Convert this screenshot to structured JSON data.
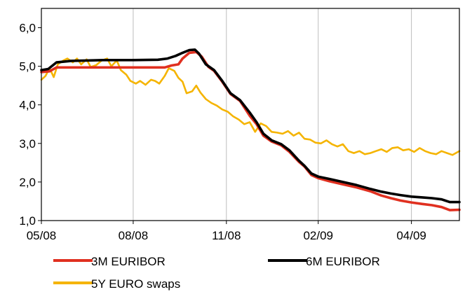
{
  "chart_data": {
    "type": "line",
    "title": "",
    "xlabel": "",
    "ylabel": "",
    "ylim": [
      1.0,
      6.5
    ],
    "y_ticks": [
      "1,0",
      "2,0",
      "3,0",
      "4,0",
      "5,0",
      "6,0"
    ],
    "y_tick_values": [
      1,
      2,
      3,
      4,
      5,
      6
    ],
    "x_domain": [
      0,
      305
    ],
    "x_ticks": [
      {
        "label": "05/08",
        "x": 0
      },
      {
        "label": "08/08",
        "x": 67
      },
      {
        "label": "11/08",
        "x": 135
      },
      {
        "label": "02/09",
        "x": 202
      },
      {
        "label": "04/09",
        "x": 270
      }
    ],
    "grid": {
      "vertical": true,
      "horizontal": false
    },
    "legend_position": "bottom",
    "series": [
      {
        "name": "3M EURIBOR",
        "color": "#e03020",
        "points": [
          [
            0,
            4.85
          ],
          [
            6,
            4.87
          ],
          [
            11,
            4.97
          ],
          [
            22,
            4.97
          ],
          [
            45,
            4.97
          ],
          [
            67,
            4.97
          ],
          [
            90,
            4.97
          ],
          [
            95,
            5.02
          ],
          [
            100,
            5.05
          ],
          [
            103,
            5.2
          ],
          [
            108,
            5.35
          ],
          [
            113,
            5.37
          ],
          [
            117,
            5.25
          ],
          [
            122,
            4.98
          ],
          [
            126,
            4.88
          ],
          [
            132,
            4.6
          ],
          [
            138,
            4.28
          ],
          [
            145,
            4.1
          ],
          [
            152,
            3.72
          ],
          [
            157,
            3.5
          ],
          [
            162,
            3.2
          ],
          [
            168,
            3.05
          ],
          [
            175,
            2.95
          ],
          [
            181,
            2.78
          ],
          [
            188,
            2.52
          ],
          [
            192,
            2.4
          ],
          [
            197,
            2.18
          ],
          [
            202,
            2.1
          ],
          [
            210,
            2.02
          ],
          [
            220,
            1.94
          ],
          [
            230,
            1.86
          ],
          [
            240,
            1.76
          ],
          [
            248,
            1.65
          ],
          [
            255,
            1.58
          ],
          [
            262,
            1.52
          ],
          [
            270,
            1.47
          ],
          [
            278,
            1.43
          ],
          [
            285,
            1.4
          ],
          [
            292,
            1.35
          ],
          [
            298,
            1.27
          ],
          [
            305,
            1.28
          ]
        ]
      },
      {
        "name": "6M EURIBOR",
        "color": "#000000",
        "points": [
          [
            0,
            4.9
          ],
          [
            5,
            4.93
          ],
          [
            11,
            5.1
          ],
          [
            22,
            5.14
          ],
          [
            45,
            5.16
          ],
          [
            67,
            5.16
          ],
          [
            85,
            5.17
          ],
          [
            92,
            5.2
          ],
          [
            98,
            5.27
          ],
          [
            103,
            5.35
          ],
          [
            108,
            5.42
          ],
          [
            112,
            5.43
          ],
          [
            115,
            5.33
          ],
          [
            120,
            5.05
          ],
          [
            126,
            4.9
          ],
          [
            132,
            4.62
          ],
          [
            138,
            4.3
          ],
          [
            145,
            4.12
          ],
          [
            152,
            3.8
          ],
          [
            157,
            3.55
          ],
          [
            162,
            3.25
          ],
          [
            168,
            3.08
          ],
          [
            175,
            2.98
          ],
          [
            181,
            2.82
          ],
          [
            188,
            2.55
          ],
          [
            192,
            2.42
          ],
          [
            197,
            2.22
          ],
          [
            202,
            2.14
          ],
          [
            210,
            2.08
          ],
          [
            220,
            2.0
          ],
          [
            230,
            1.92
          ],
          [
            240,
            1.82
          ],
          [
            248,
            1.75
          ],
          [
            255,
            1.7
          ],
          [
            262,
            1.66
          ],
          [
            270,
            1.62
          ],
          [
            278,
            1.6
          ],
          [
            285,
            1.58
          ],
          [
            292,
            1.55
          ],
          [
            298,
            1.48
          ],
          [
            305,
            1.48
          ]
        ]
      },
      {
        "name": "5Y EURO swaps",
        "color": "#f5b400",
        "points": [
          [
            0,
            4.65
          ],
          [
            3,
            4.75
          ],
          [
            6,
            4.95
          ],
          [
            9,
            4.72
          ],
          [
            12,
            5.05
          ],
          [
            16,
            5.15
          ],
          [
            19,
            5.2
          ],
          [
            23,
            5.1
          ],
          [
            26,
            5.2
          ],
          [
            29,
            5.05
          ],
          [
            33,
            5.18
          ],
          [
            36,
            4.98
          ],
          [
            40,
            5.03
          ],
          [
            44,
            5.15
          ],
          [
            48,
            5.2
          ],
          [
            51,
            5.0
          ],
          [
            55,
            5.15
          ],
          [
            58,
            4.9
          ],
          [
            62,
            4.78
          ],
          [
            65,
            4.62
          ],
          [
            69,
            4.55
          ],
          [
            72,
            4.62
          ],
          [
            76,
            4.52
          ],
          [
            80,
            4.65
          ],
          [
            83,
            4.62
          ],
          [
            86,
            4.55
          ],
          [
            90,
            4.75
          ],
          [
            93,
            4.95
          ],
          [
            97,
            4.88
          ],
          [
            100,
            4.7
          ],
          [
            103,
            4.6
          ],
          [
            106,
            4.3
          ],
          [
            110,
            4.35
          ],
          [
            113,
            4.5
          ],
          [
            116,
            4.32
          ],
          [
            120,
            4.15
          ],
          [
            124,
            4.05
          ],
          [
            128,
            3.98
          ],
          [
            132,
            3.88
          ],
          [
            136,
            3.82
          ],
          [
            140,
            3.7
          ],
          [
            144,
            3.62
          ],
          [
            148,
            3.5
          ],
          [
            152,
            3.55
          ],
          [
            156,
            3.3
          ],
          [
            160,
            3.52
          ],
          [
            164,
            3.45
          ],
          [
            168,
            3.3
          ],
          [
            172,
            3.28
          ],
          [
            176,
            3.25
          ],
          [
            180,
            3.32
          ],
          [
            184,
            3.2
          ],
          [
            188,
            3.28
          ],
          [
            192,
            3.12
          ],
          [
            196,
            3.1
          ],
          [
            200,
            3.02
          ],
          [
            204,
            3.0
          ],
          [
            208,
            3.08
          ],
          [
            212,
            2.98
          ],
          [
            216,
            2.92
          ],
          [
            220,
            2.98
          ],
          [
            224,
            2.8
          ],
          [
            228,
            2.75
          ],
          [
            232,
            2.8
          ],
          [
            236,
            2.72
          ],
          [
            240,
            2.75
          ],
          [
            244,
            2.8
          ],
          [
            248,
            2.85
          ],
          [
            252,
            2.78
          ],
          [
            256,
            2.88
          ],
          [
            260,
            2.9
          ],
          [
            264,
            2.82
          ],
          [
            268,
            2.85
          ],
          [
            272,
            2.78
          ],
          [
            276,
            2.88
          ],
          [
            280,
            2.8
          ],
          [
            284,
            2.75
          ],
          [
            288,
            2.72
          ],
          [
            292,
            2.8
          ],
          [
            296,
            2.75
          ],
          [
            300,
            2.7
          ],
          [
            305,
            2.8
          ]
        ]
      }
    ]
  }
}
